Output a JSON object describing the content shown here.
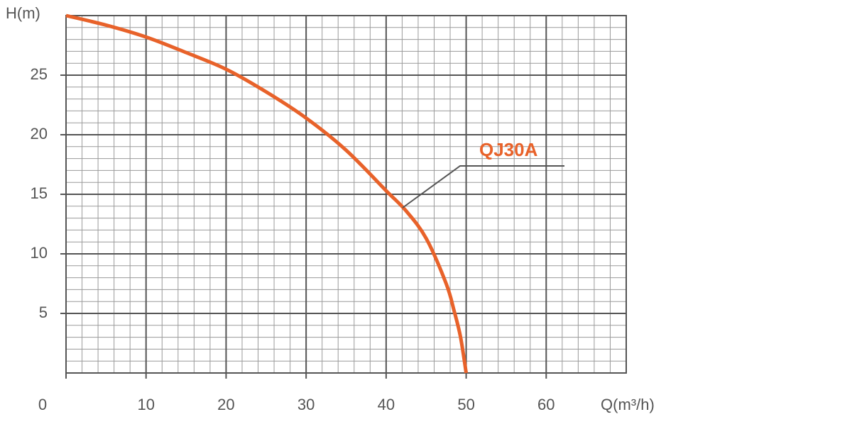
{
  "chart_data": {
    "type": "line",
    "x_label": "Q(m³/h)",
    "y_label": "H(m)",
    "series": [
      {
        "name": "QJ30A",
        "color": "#e8622a",
        "x": [
          0,
          5,
          10,
          15,
          20,
          25,
          30,
          35,
          40,
          42.5,
          45,
          47.5,
          48.5,
          49.3,
          50
        ],
        "values": [
          30,
          29.2,
          28.2,
          26.9,
          25.5,
          23.6,
          21.4,
          18.7,
          15.3,
          13.6,
          11.3,
          7.5,
          5.2,
          3.0,
          0
        ]
      }
    ],
    "xlim": [
      0,
      70
    ],
    "ylim": [
      0,
      30
    ],
    "xticks": [
      0,
      10,
      20,
      30,
      40,
      50,
      60
    ],
    "yticks": [
      5,
      10,
      15,
      20,
      25
    ],
    "grid": true
  }
}
